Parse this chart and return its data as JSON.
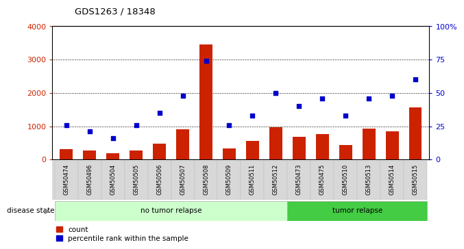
{
  "title": "GDS1263 / 18348",
  "samples": [
    "GSM50474",
    "GSM50496",
    "GSM50504",
    "GSM50505",
    "GSM50506",
    "GSM50507",
    "GSM50508",
    "GSM50509",
    "GSM50511",
    "GSM50512",
    "GSM50473",
    "GSM50475",
    "GSM50510",
    "GSM50513",
    "GSM50514",
    "GSM50515"
  ],
  "counts": [
    310,
    270,
    190,
    280,
    470,
    900,
    3450,
    330,
    570,
    970,
    680,
    760,
    440,
    920,
    840,
    1570
  ],
  "percentiles": [
    26,
    21,
    16,
    26,
    35,
    48,
    74,
    26,
    33,
    50,
    40,
    46,
    33,
    46,
    48,
    60
  ],
  "group_labels": [
    "no tumor relapse",
    "tumor relapse"
  ],
  "group_sizes": [
    10,
    6
  ],
  "bar_color": "#cc2200",
  "scatter_color": "#0000cc",
  "ylim_left": [
    0,
    4000
  ],
  "ylim_right": [
    0,
    100
  ],
  "yticks_left": [
    0,
    1000,
    2000,
    3000,
    4000
  ],
  "yticks_right": [
    0,
    25,
    50,
    75,
    100
  ],
  "ytick_labels_right": [
    "0",
    "25",
    "50",
    "75",
    "100%"
  ],
  "group_bg_light": "#ccffcc",
  "group_bg_dark": "#44cc44",
  "legend_items": [
    "count",
    "percentile rank within the sample"
  ]
}
